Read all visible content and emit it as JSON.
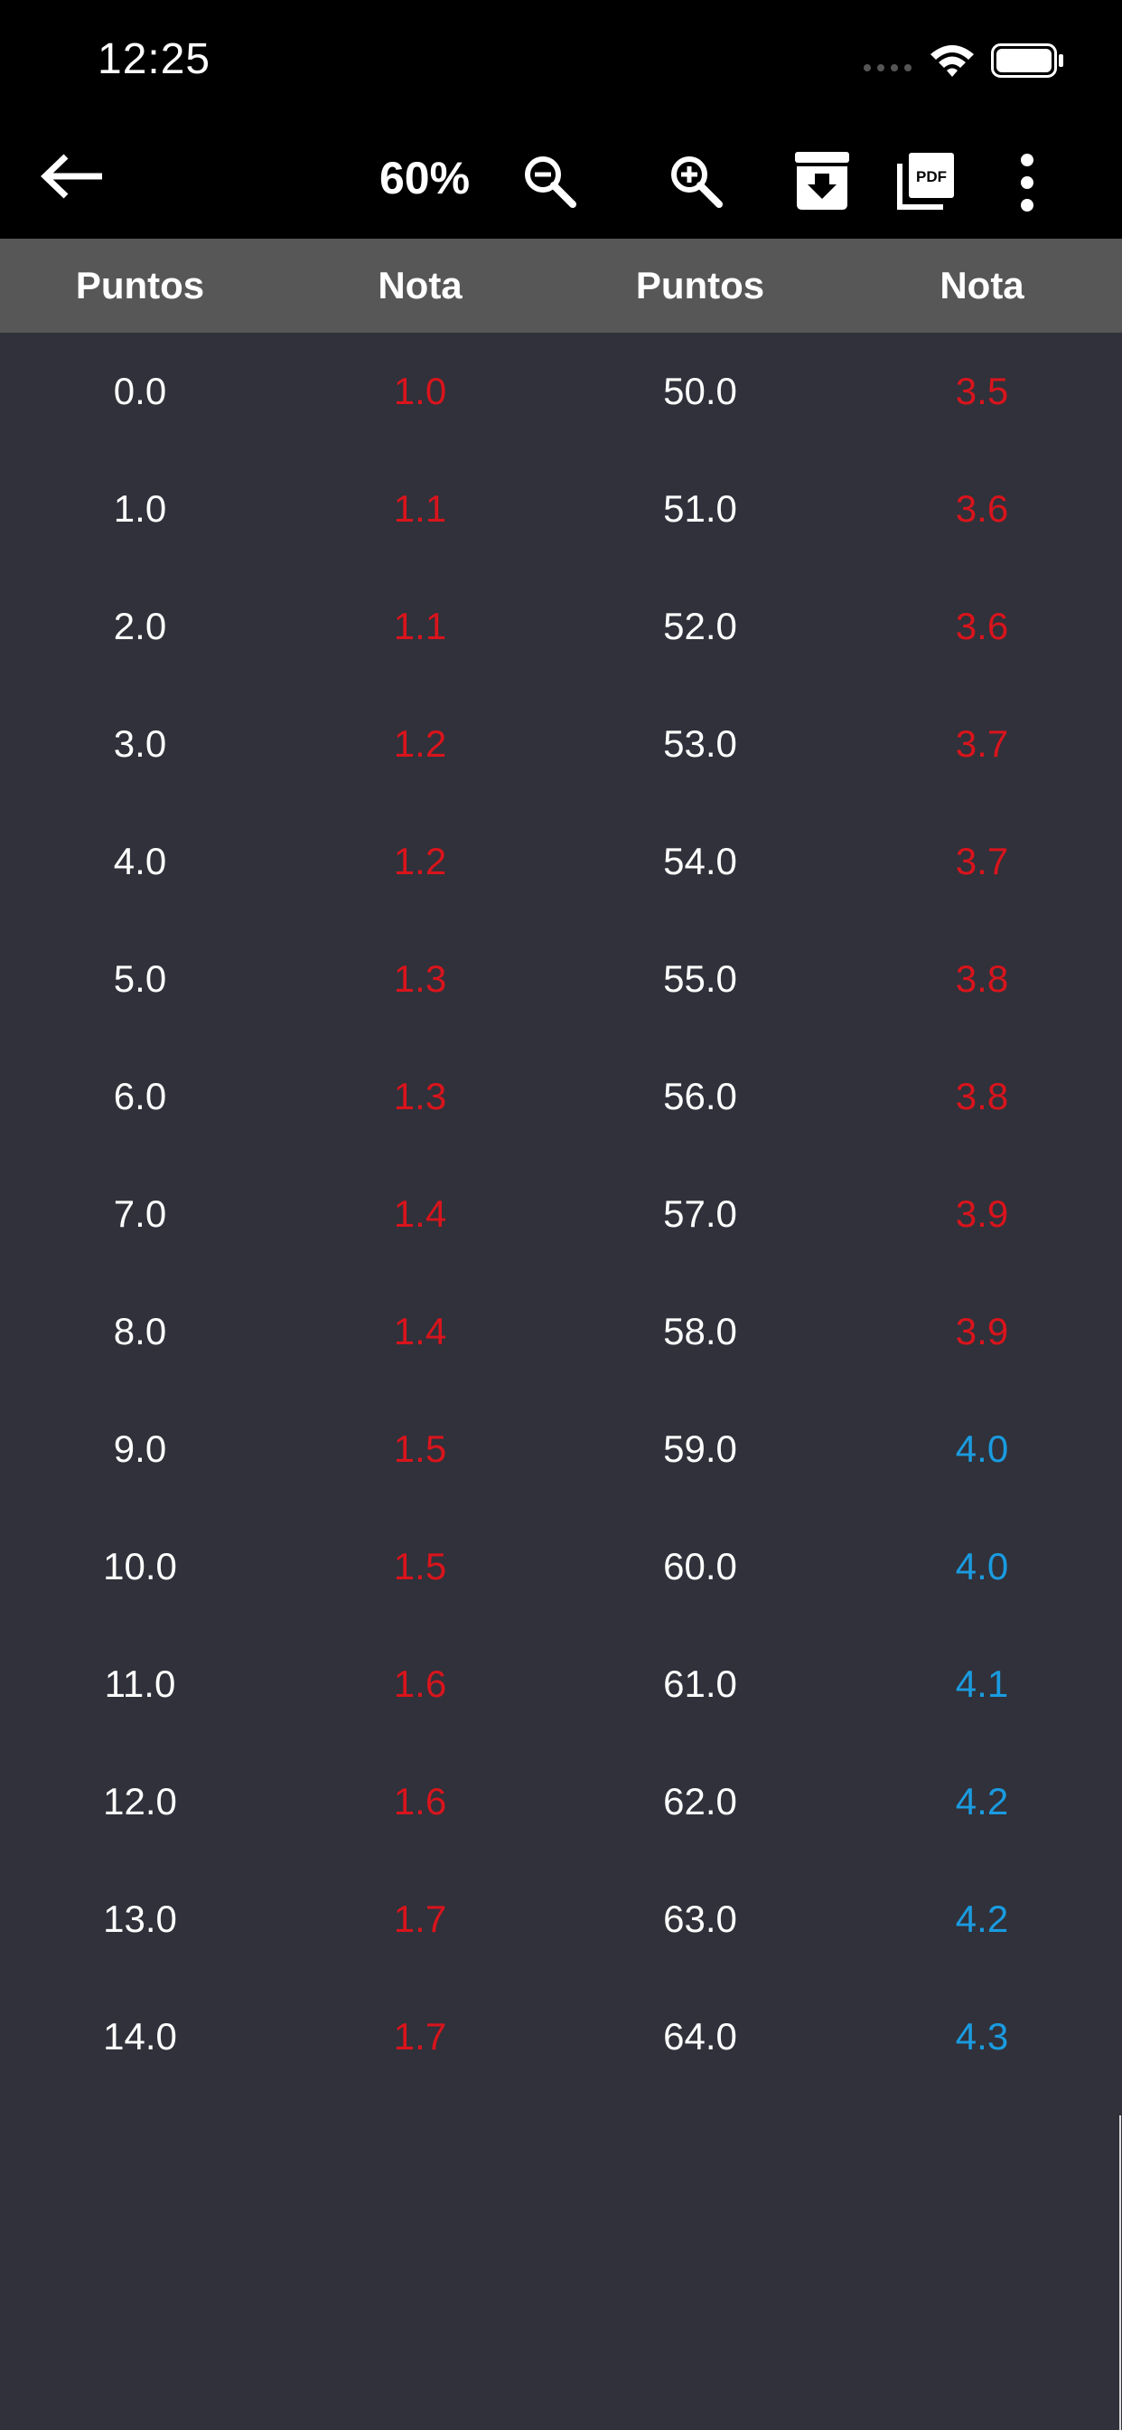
{
  "status_bar": {
    "time": "12:25"
  },
  "toolbar": {
    "zoom_level": "60%",
    "icons": {
      "back": "arrow-left-icon",
      "zoom_out": "zoom-out-icon",
      "zoom_in": "zoom-in-icon",
      "download": "archive-download-icon",
      "pdf": "pdf-icon",
      "more": "more-vertical-icon"
    }
  },
  "table": {
    "headers": [
      "Puntos",
      "Nota",
      "Puntos",
      "Nota"
    ],
    "colors": {
      "fail": "#d9141c",
      "pass": "#1a9be0"
    },
    "rows": [
      {
        "p1": "0.0",
        "n1": "1.0",
        "p2": "50.0",
        "n2": "3.5",
        "n2_pass": false
      },
      {
        "p1": "1.0",
        "n1": "1.1",
        "p2": "51.0",
        "n2": "3.6",
        "n2_pass": false
      },
      {
        "p1": "2.0",
        "n1": "1.1",
        "p2": "52.0",
        "n2": "3.6",
        "n2_pass": false
      },
      {
        "p1": "3.0",
        "n1": "1.2",
        "p2": "53.0",
        "n2": "3.7",
        "n2_pass": false
      },
      {
        "p1": "4.0",
        "n1": "1.2",
        "p2": "54.0",
        "n2": "3.7",
        "n2_pass": false
      },
      {
        "p1": "5.0",
        "n1": "1.3",
        "p2": "55.0",
        "n2": "3.8",
        "n2_pass": false
      },
      {
        "p1": "6.0",
        "n1": "1.3",
        "p2": "56.0",
        "n2": "3.8",
        "n2_pass": false
      },
      {
        "p1": "7.0",
        "n1": "1.4",
        "p2": "57.0",
        "n2": "3.9",
        "n2_pass": false
      },
      {
        "p1": "8.0",
        "n1": "1.4",
        "p2": "58.0",
        "n2": "3.9",
        "n2_pass": false
      },
      {
        "p1": "9.0",
        "n1": "1.5",
        "p2": "59.0",
        "n2": "4.0",
        "n2_pass": true
      },
      {
        "p1": "10.0",
        "n1": "1.5",
        "p2": "60.0",
        "n2": "4.0",
        "n2_pass": true
      },
      {
        "p1": "11.0",
        "n1": "1.6",
        "p2": "61.0",
        "n2": "4.1",
        "n2_pass": true
      },
      {
        "p1": "12.0",
        "n1": "1.6",
        "p2": "62.0",
        "n2": "4.2",
        "n2_pass": true
      },
      {
        "p1": "13.0",
        "n1": "1.7",
        "p2": "63.0",
        "n2": "4.2",
        "n2_pass": true
      },
      {
        "p1": "14.0",
        "n1": "1.7",
        "p2": "64.0",
        "n2": "4.3",
        "n2_pass": true
      }
    ]
  }
}
